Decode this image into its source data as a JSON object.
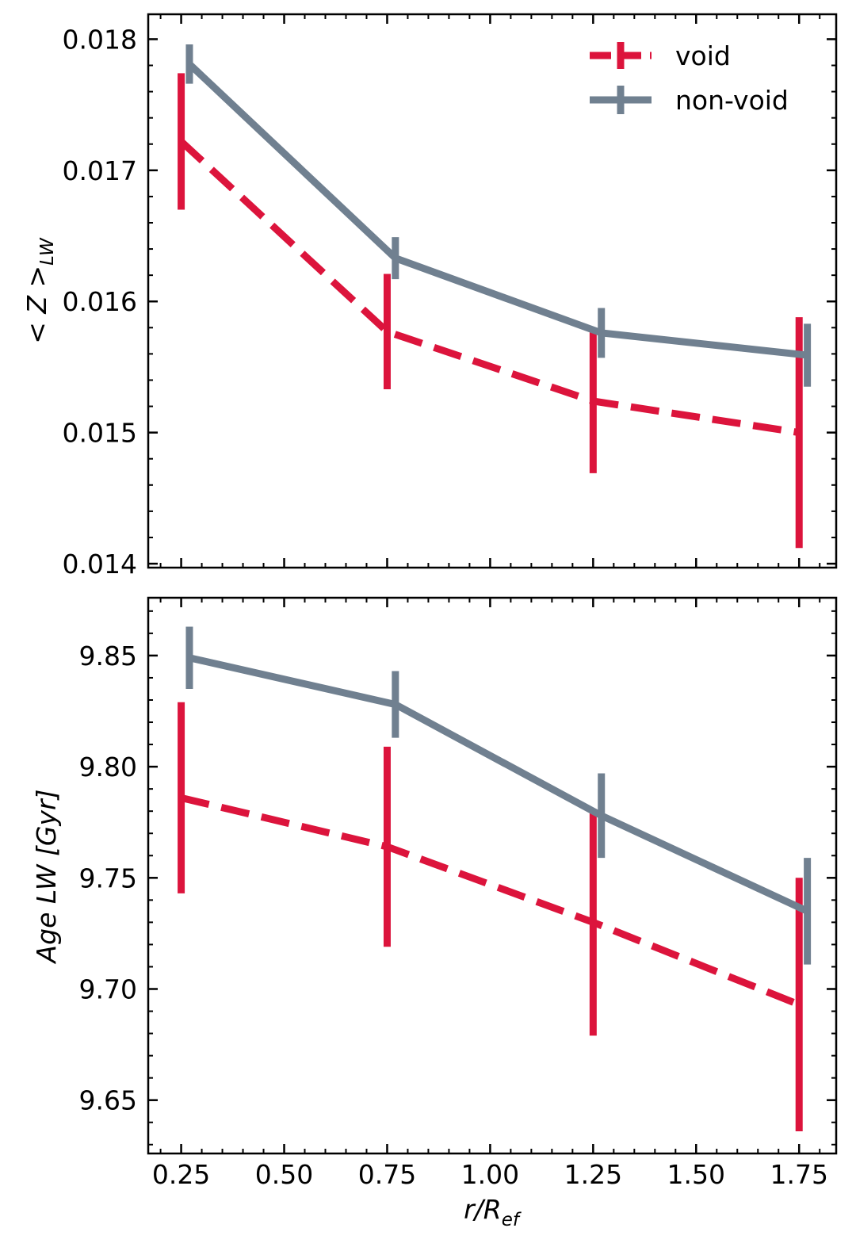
{
  "colors": {
    "void": "#dc143c",
    "non_void": "#708090",
    "axes": "#000000",
    "background": "#ffffff"
  },
  "chart_data": [
    {
      "type": "line",
      "title": "",
      "xlabel": "",
      "ylabel": "<Z>_LW",
      "ylabel_parts": {
        "main": "< Z >",
        "sub": "LW"
      },
      "xlim": [
        0.17,
        1.84
      ],
      "ylim": [
        0.01397,
        0.01819
      ],
      "yticks": [
        0.014,
        0.015,
        0.016,
        0.017,
        0.018
      ],
      "ytick_labels": [
        "0.014",
        "0.015",
        "0.016",
        "0.017",
        "0.018"
      ],
      "series": [
        {
          "name": "void",
          "style": "dashed",
          "color": "#dc143c",
          "x": [
            0.25,
            0.75,
            1.25,
            1.75
          ],
          "values": [
            0.01722,
            0.01577,
            0.01524,
            0.015
          ],
          "errors": [
            0.00052,
            0.00044,
            0.00055,
            0.00088
          ]
        },
        {
          "name": "non-void",
          "style": "solid",
          "color": "#708090",
          "x": [
            0.27,
            0.77,
            1.27,
            1.77
          ],
          "values": [
            0.01781,
            0.01633,
            0.01576,
            0.01559
          ],
          "errors": [
            0.00015,
            0.00016,
            0.00019,
            0.00024
          ]
        }
      ],
      "legend": {
        "position": "top-right",
        "entries": [
          "void",
          "non-void"
        ]
      }
    },
    {
      "type": "line",
      "title": "",
      "xlabel": "r/R_ef",
      "xlabel_parts": {
        "main": "r/R",
        "sub": "ef"
      },
      "ylabel": "Age LW [Gyr]",
      "xlim": [
        0.17,
        1.84
      ],
      "ylim": [
        9.626,
        9.876
      ],
      "xticks": [
        0.25,
        0.5,
        0.75,
        1.0,
        1.25,
        1.5,
        1.75
      ],
      "xtick_labels": [
        "0.25",
        "0.50",
        "0.75",
        "1.00",
        "1.25",
        "1.50",
        "1.75"
      ],
      "yticks": [
        9.65,
        9.7,
        9.75,
        9.8,
        9.85
      ],
      "ytick_labels": [
        "9.65",
        "9.70",
        "9.75",
        "9.80",
        "9.85"
      ],
      "series": [
        {
          "name": "void",
          "style": "dashed",
          "color": "#dc143c",
          "x": [
            0.25,
            0.75,
            1.25,
            1.75
          ],
          "values": [
            9.786,
            9.764,
            9.73,
            9.693
          ],
          "errors": [
            0.043,
            0.045,
            0.051,
            0.057
          ]
        },
        {
          "name": "non-void",
          "style": "solid",
          "color": "#708090",
          "x": [
            0.27,
            0.77,
            1.27,
            1.77
          ],
          "values": [
            9.849,
            9.828,
            9.778,
            9.735
          ],
          "errors": [
            0.014,
            0.015,
            0.019,
            0.024
          ]
        }
      ]
    }
  ]
}
